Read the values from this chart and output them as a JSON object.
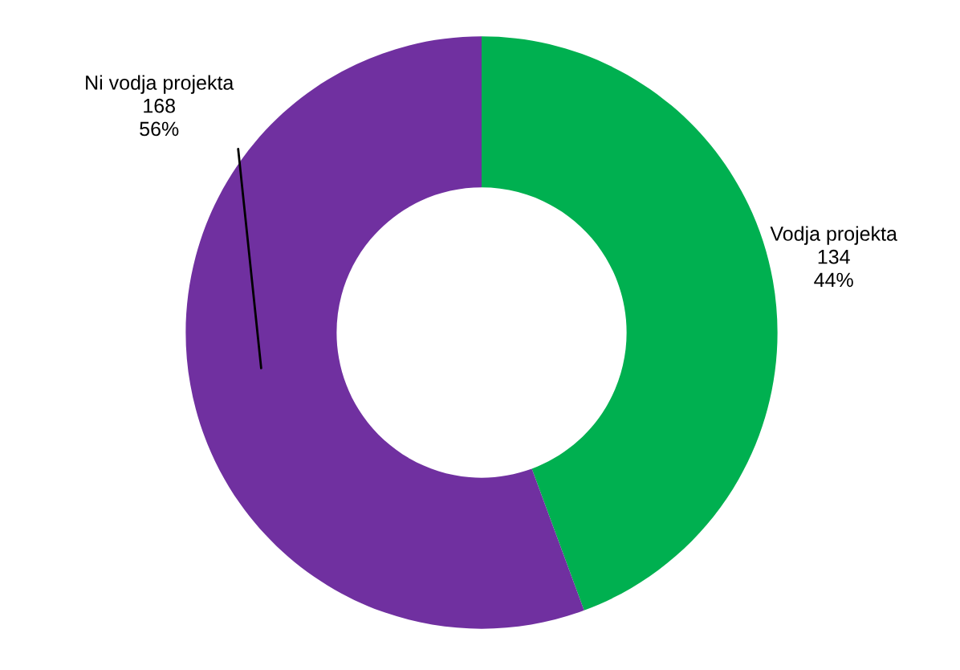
{
  "chart_data": {
    "type": "donut",
    "categories": [
      "Vodja projekta",
      "Ni vodja projekta"
    ],
    "values": [
      134,
      168
    ],
    "colors": [
      "#00b050",
      "#7030a0"
    ],
    "value_labels": [
      "134\n44%",
      "168\n56%"
    ],
    "legend": false
  }
}
